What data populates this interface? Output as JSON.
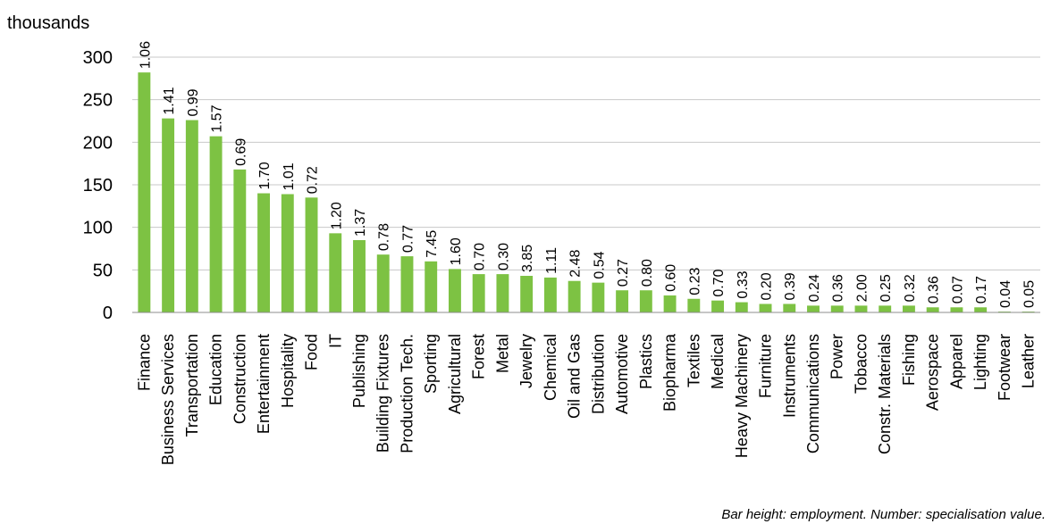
{
  "chart_data": {
    "type": "bar",
    "unit_label": "thousands",
    "ylim": [
      0,
      300
    ],
    "yticks": [
      0,
      50,
      100,
      150,
      200,
      250,
      300
    ],
    "grid": true,
    "bar_color": "#7dc243",
    "categories": [
      "Finance",
      "Business Services",
      "Transportation",
      "Education",
      "Construction",
      "Entertainment",
      "Hospitality",
      "Food",
      "IT",
      "Publishing",
      "Building Fixtures",
      "Production Tech.",
      "Sporting",
      "Agricultural",
      "Forest",
      "Metal",
      "Jewelry",
      "Chemical",
      "Oil and Gas",
      "Distribution",
      "Automotive",
      "Plastics",
      "Biopharma",
      "Textiles",
      "Medical",
      "Heavy Machinery",
      "Furniture",
      "Instruments",
      "Communications",
      "Power",
      "Tobacco",
      "Constr. Materials",
      "Fishing",
      "Aerospace",
      "Apparel",
      "Lighting",
      "Footwear",
      "Leather"
    ],
    "values": [
      282,
      228,
      226,
      207,
      168,
      140,
      139,
      135,
      93,
      85,
      68,
      66,
      60,
      51,
      45,
      45,
      43,
      41,
      37,
      35,
      26,
      26,
      20,
      16,
      14,
      12,
      10,
      10,
      8,
      8,
      8,
      8,
      8,
      6,
      6,
      6,
      1,
      1
    ],
    "data_labels": [
      "1.06",
      "1.41",
      "0.99",
      "1.57",
      "0.69",
      "1.70",
      "1.01",
      "0.72",
      "1.20",
      "1.37",
      "0.78",
      "0.77",
      "7.45",
      "1.60",
      "0.70",
      "0.30",
      "3.85",
      "1.11",
      "2.48",
      "0.54",
      "0.27",
      "0.80",
      "0.60",
      "0.23",
      "0.70",
      "0.33",
      "0.20",
      "0.39",
      "0.24",
      "0.36",
      "2.00",
      "0.25",
      "0.32",
      "0.36",
      "0.07",
      "0.17",
      "0.04",
      "0.05"
    ],
    "footnote": "Bar height: employment. Number: specialisation value."
  }
}
